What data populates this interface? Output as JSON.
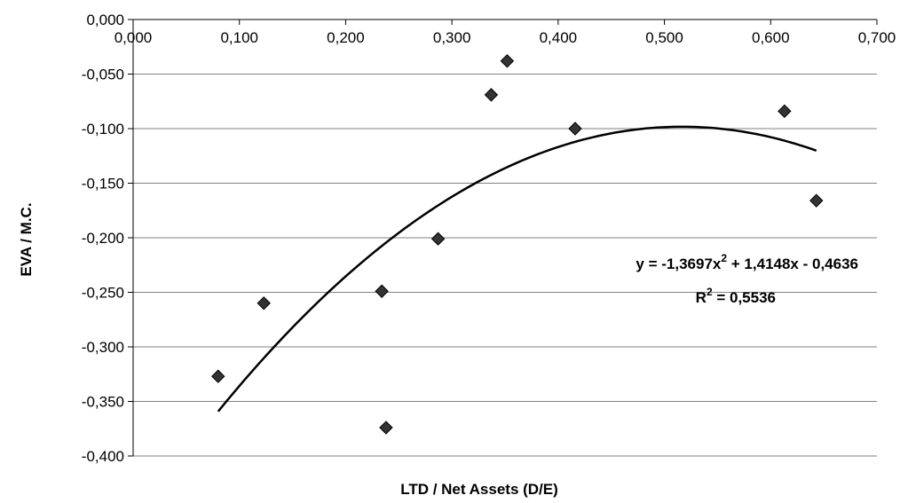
{
  "chart_data": {
    "type": "scatter",
    "xlabel": "LTD / Net Assets (D/E)",
    "ylabel": "EVA / M.C.",
    "xlim": [
      0,
      0.7
    ],
    "ylim": [
      -0.4,
      0.0
    ],
    "xticks": [
      "0,000",
      "0,100",
      "0,200",
      "0,300",
      "0,400",
      "0,500",
      "0,600",
      "0,700"
    ],
    "yticks": [
      "0,000",
      "-0,050",
      "-0,100",
      "-0,150",
      "-0,200",
      "-0,250",
      "-0,300",
      "-0,350",
      "-0,400"
    ],
    "xtick_values": [
      0,
      0.1,
      0.2,
      0.3,
      0.4,
      0.5,
      0.6,
      0.7
    ],
    "ytick_values": [
      0,
      -0.05,
      -0.1,
      -0.15,
      -0.2,
      -0.25,
      -0.3,
      -0.35,
      -0.4
    ],
    "x_axis_position": "top",
    "grid": "horizontal",
    "marker": "diamond",
    "marker_color": "#333333",
    "points": [
      {
        "x": 0.08,
        "y": -0.327
      },
      {
        "x": 0.123,
        "y": -0.26
      },
      {
        "x": 0.234,
        "y": -0.249
      },
      {
        "x": 0.238,
        "y": -0.374
      },
      {
        "x": 0.287,
        "y": -0.201
      },
      {
        "x": 0.337,
        "y": -0.069
      },
      {
        "x": 0.352,
        "y": -0.038
      },
      {
        "x": 0.416,
        "y": -0.1
      },
      {
        "x": 0.613,
        "y": -0.084
      },
      {
        "x": 0.643,
        "y": -0.166
      }
    ],
    "trendline": {
      "type": "polynomial",
      "coefficients": [
        -1.3697,
        1.4148,
        -0.4636
      ],
      "x_range": [
        0.08,
        0.643
      ],
      "color": "#000000",
      "equation_prefix": "y = -1,3697x",
      "equation_exponent": "2",
      "equation_suffix": " + 1,4148x  - 0,4636",
      "r2_prefix": "R",
      "r2_exponent": "2",
      "r2_suffix": " = 0,5536"
    }
  }
}
